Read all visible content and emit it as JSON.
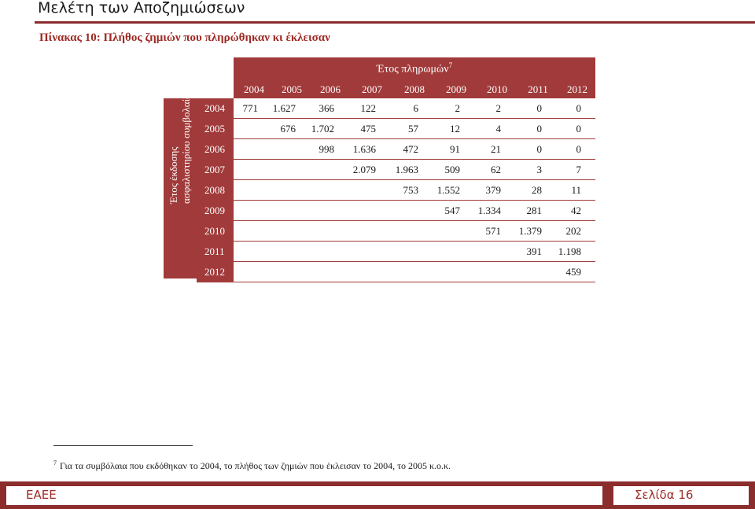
{
  "header": {
    "title": "Μελέτη των Αποζημιώσεων"
  },
  "caption": "Πίνακας 10: Πλήθος ζημιών που πληρώθηκαν κι έκλεισαν",
  "table": {
    "column_group_title": "Έτος πληρωμών",
    "column_group_footnote_ref": "7",
    "row_group_title_line1": "Έτος έκδοσης",
    "row_group_title_line2": "ασφαλιστηρίου συμβολαίου",
    "payment_years": [
      "2004",
      "2005",
      "2006",
      "2007",
      "2008",
      "2009",
      "2010",
      "2011",
      "2012"
    ],
    "rows": [
      {
        "year": "2004",
        "values": [
          "771",
          "1.627",
          "366",
          "122",
          "6",
          "2",
          "2",
          "0",
          "0"
        ]
      },
      {
        "year": "2005",
        "values": [
          "",
          "676",
          "1.702",
          "475",
          "57",
          "12",
          "4",
          "0",
          "0"
        ]
      },
      {
        "year": "2006",
        "values": [
          "",
          "",
          "998",
          "1.636",
          "472",
          "91",
          "21",
          "0",
          "0"
        ]
      },
      {
        "year": "2007",
        "values": [
          "",
          "",
          "",
          "2.079",
          "1.963",
          "509",
          "62",
          "3",
          "7"
        ]
      },
      {
        "year": "2008",
        "values": [
          "",
          "",
          "",
          "",
          "753",
          "1.552",
          "379",
          "28",
          "11"
        ]
      },
      {
        "year": "2009",
        "values": [
          "",
          "",
          "",
          "",
          "",
          "547",
          "1.334",
          "281",
          "42"
        ]
      },
      {
        "year": "2010",
        "values": [
          "",
          "",
          "",
          "",
          "",
          "",
          "571",
          "1.379",
          "202"
        ]
      },
      {
        "year": "2011",
        "values": [
          "",
          "",
          "",
          "",
          "",
          "",
          "",
          "391",
          "1.198"
        ]
      },
      {
        "year": "2012",
        "values": [
          "",
          "",
          "",
          "",
          "",
          "",
          "",
          "",
          "459"
        ]
      }
    ]
  },
  "footnote": {
    "number": "7",
    "text": "Για τα συμβόλαια που εκδόθηκαν το 2004, το πλήθος των ζημιών που έκλεισαν το 2004, το 2005 κ.ο.κ."
  },
  "footer": {
    "left": "ΕΑΕΕ",
    "right": "Σελίδα 16"
  }
}
